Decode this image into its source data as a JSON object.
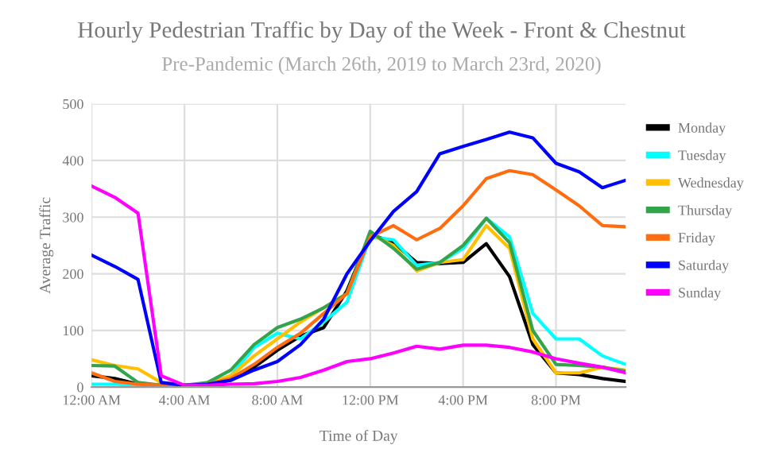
{
  "chart_data": {
    "type": "line",
    "title": "Hourly Pedestrian Traffic by Day of the Week - Front & Chestnut",
    "subtitle": "Pre-Pandemic (March 26th, 2019 to March 23rd, 2020)",
    "xlabel": "Time of Day",
    "ylabel": "Average Traffic",
    "x": [
      0,
      1,
      2,
      3,
      4,
      5,
      6,
      7,
      8,
      9,
      10,
      11,
      12,
      13,
      14,
      15,
      16,
      17,
      18,
      19,
      20,
      21,
      22,
      23
    ],
    "xlim": [
      0,
      23
    ],
    "xticks": [
      {
        "value": 0,
        "label": "12:00 AM"
      },
      {
        "value": 4,
        "label": "4:00 AM"
      },
      {
        "value": 8,
        "label": "8:00 AM"
      },
      {
        "value": 12,
        "label": "12:00 PM"
      },
      {
        "value": 16,
        "label": "4:00 PM"
      },
      {
        "value": 20,
        "label": "8:00 PM"
      }
    ],
    "ylim": [
      0,
      500
    ],
    "yticks": [
      0,
      100,
      200,
      300,
      400,
      500
    ],
    "grid": true,
    "legend": "right",
    "marker": "none",
    "line_style": "solid",
    "series": [
      {
        "name": "Monday",
        "color": "#000000",
        "values": [
          20,
          15,
          5,
          3,
          3,
          5,
          12,
          35,
          65,
          90,
          105,
          170,
          270,
          255,
          220,
          218,
          220,
          253,
          195,
          75,
          25,
          22,
          15,
          10
        ]
      },
      {
        "name": "Tuesday",
        "color": "#00ffff",
        "values": [
          5,
          5,
          3,
          3,
          3,
          5,
          20,
          70,
          95,
          85,
          115,
          150,
          265,
          260,
          215,
          220,
          245,
          298,
          265,
          130,
          85,
          85,
          55,
          40
        ]
      },
      {
        "name": "Wednesday",
        "color": "#ffc000",
        "values": [
          48,
          38,
          32,
          8,
          3,
          5,
          20,
          55,
          85,
          115,
          140,
          165,
          270,
          250,
          205,
          220,
          225,
          285,
          245,
          85,
          25,
          25,
          35,
          30
        ]
      },
      {
        "name": "Thursday",
        "color": "#33a34c",
        "values": [
          38,
          37,
          8,
          3,
          3,
          8,
          30,
          75,
          105,
          120,
          140,
          165,
          275,
          245,
          208,
          220,
          250,
          298,
          255,
          100,
          40,
          38,
          35,
          28
        ]
      },
      {
        "name": "Friday",
        "color": "#ff6d10",
        "values": [
          25,
          10,
          5,
          3,
          3,
          5,
          15,
          40,
          70,
          95,
          130,
          165,
          265,
          285,
          260,
          280,
          320,
          368,
          382,
          375,
          348,
          320,
          285,
          283
        ]
      },
      {
        "name": "Saturday",
        "color": "#0000ff",
        "values": [
          233,
          213,
          190,
          8,
          3,
          5,
          12,
          30,
          45,
          75,
          120,
          200,
          258,
          310,
          345,
          412,
          425,
          437,
          450,
          440,
          395,
          380,
          352,
          365
        ]
      },
      {
        "name": "Sunday",
        "color": "#ff00ff",
        "values": [
          355,
          335,
          307,
          20,
          3,
          3,
          5,
          6,
          10,
          17,
          30,
          45,
          50,
          60,
          72,
          67,
          74,
          74,
          70,
          62,
          50,
          42,
          35,
          25
        ]
      }
    ]
  }
}
